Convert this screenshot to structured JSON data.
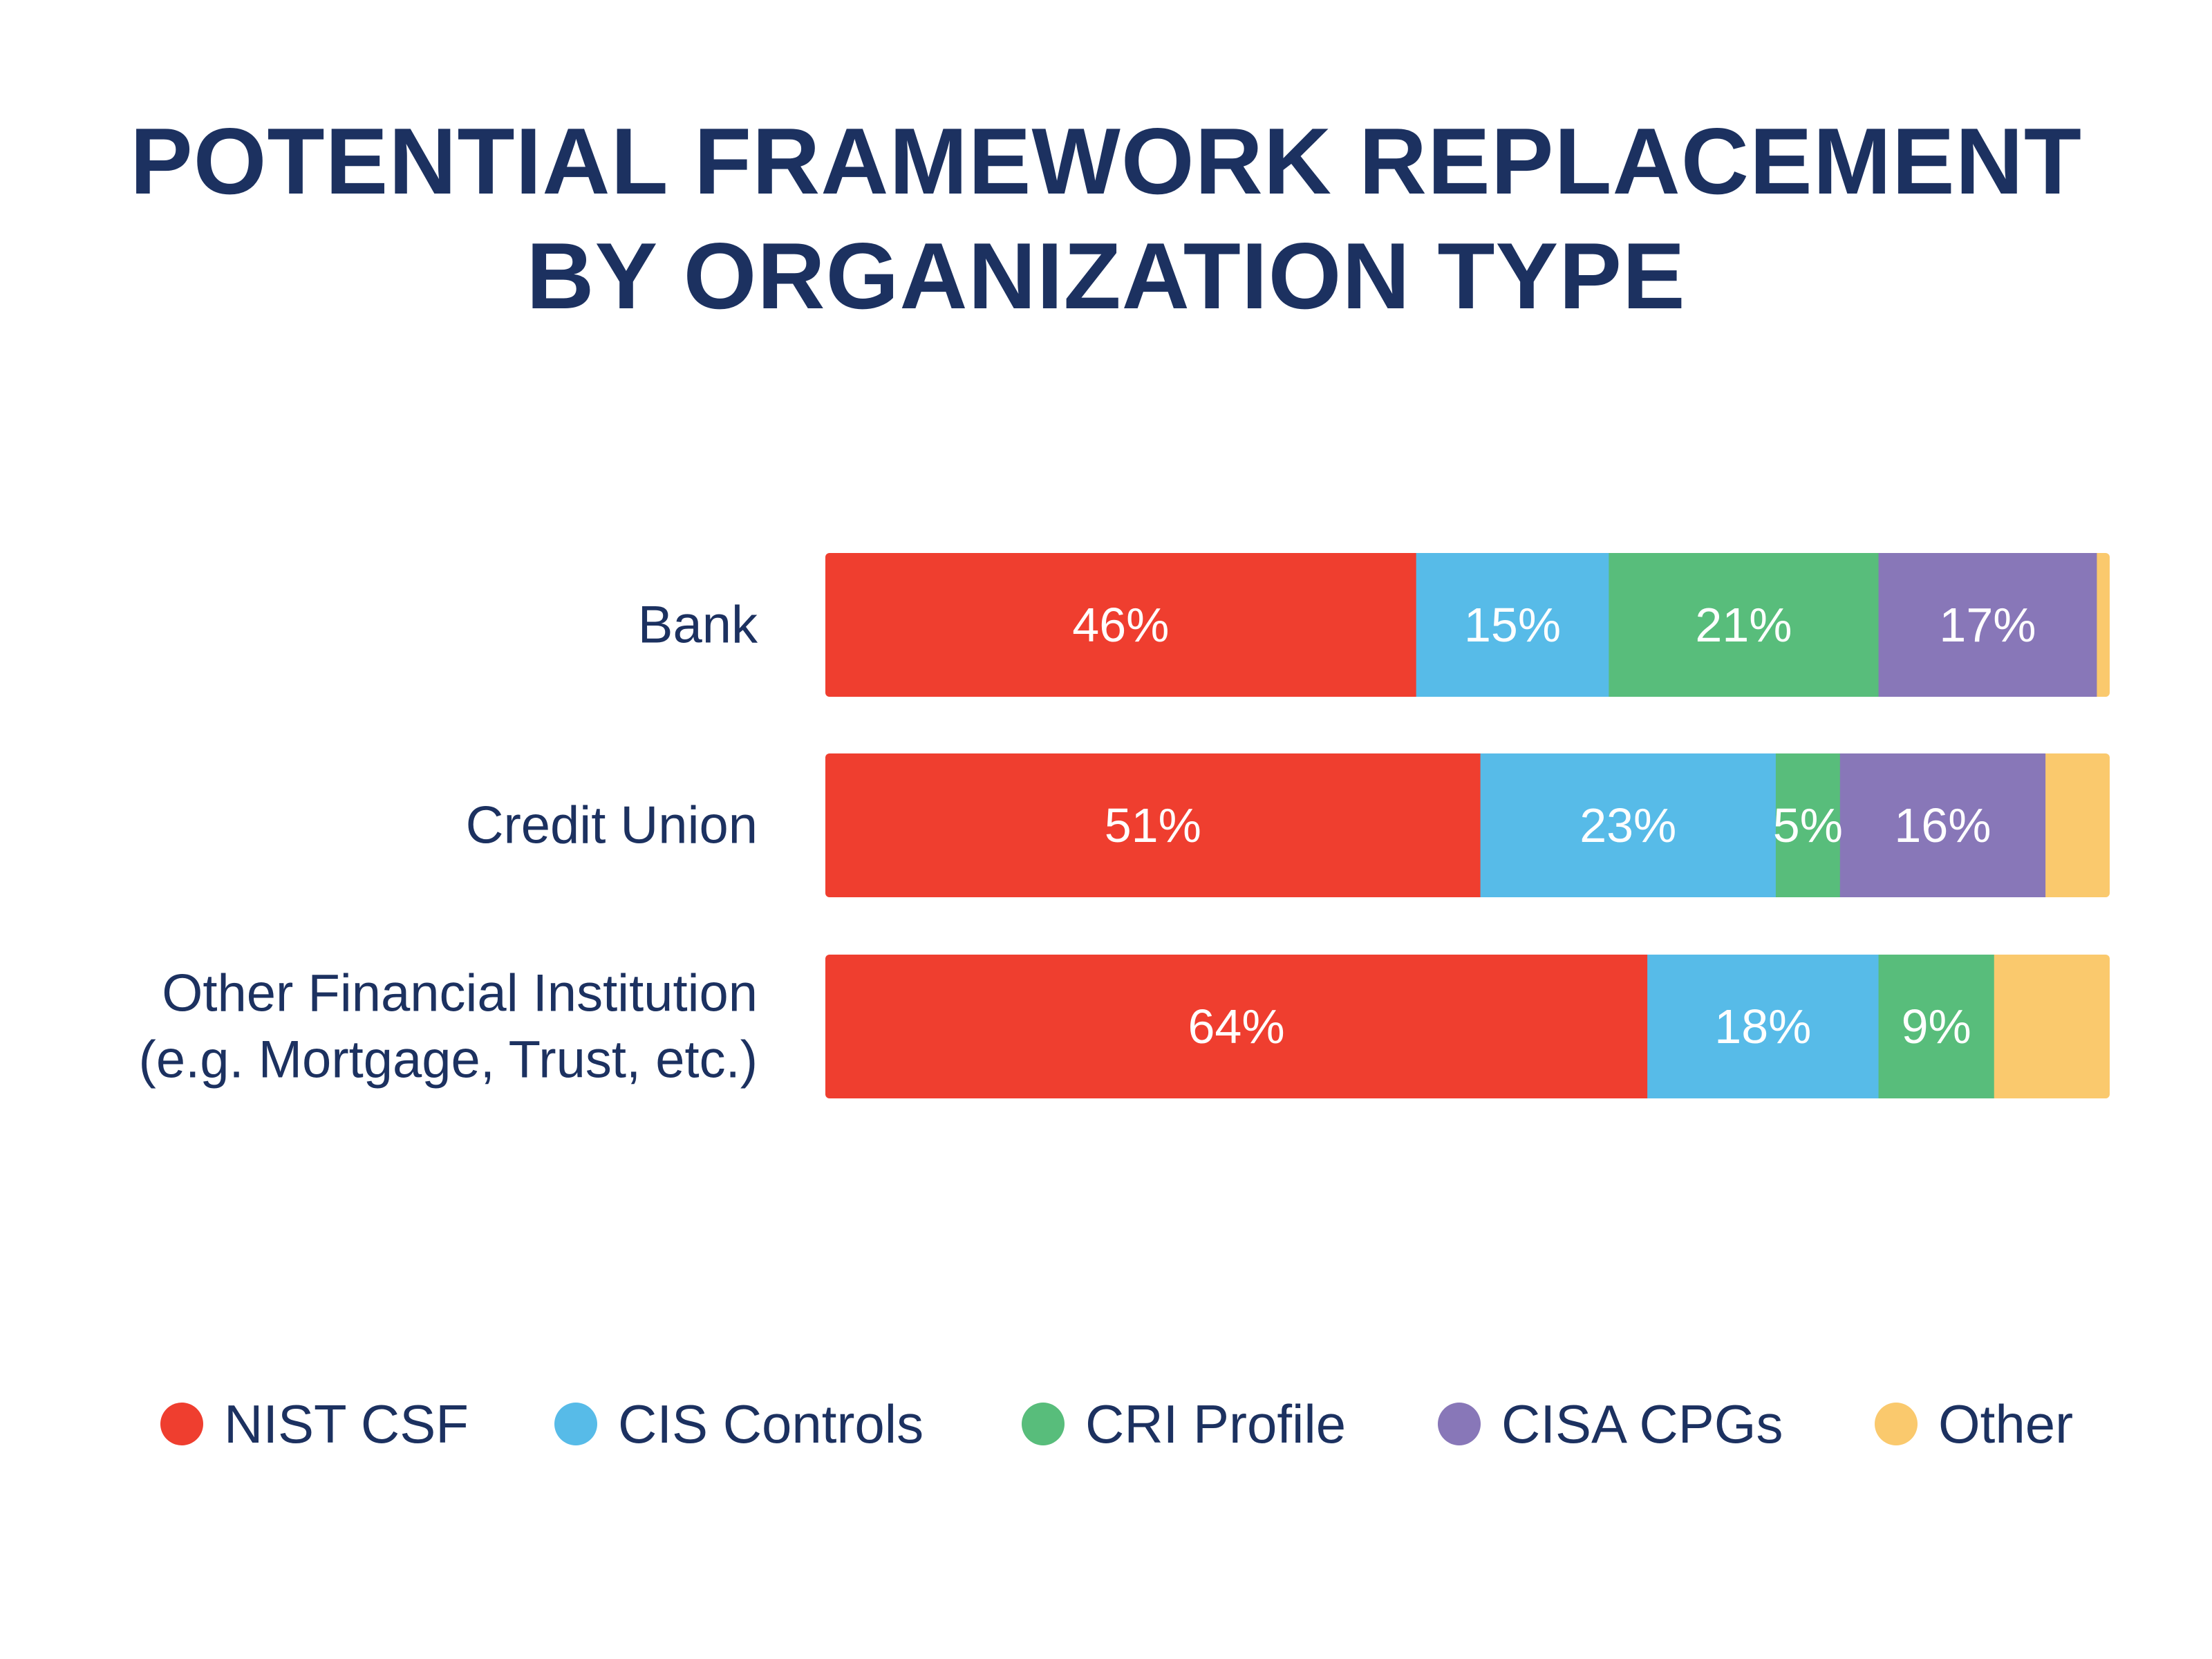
{
  "chart_data": {
    "type": "bar",
    "orientation": "horizontal",
    "stacked": true,
    "title_lines": [
      "POTENTIAL FRAMEWORK REPLACEMENT",
      "BY ORGANIZATION TYPE"
    ],
    "categories": [
      [
        "Bank"
      ],
      [
        "Credit Union"
      ],
      [
        "Other Financial Institution",
        "(e.g. Mortgage, Trust, etc.)"
      ]
    ],
    "series": [
      {
        "name": "NIST CSF",
        "color": "#ef3e2f",
        "values": [
          46,
          51,
          64
        ],
        "labels": [
          "46%",
          "51%",
          "64%"
        ]
      },
      {
        "name": "CIS Controls",
        "color": "#57bbe8",
        "values": [
          15,
          23,
          18
        ],
        "labels": [
          "15%",
          "23%",
          "18%"
        ]
      },
      {
        "name": "CRI Profile",
        "color": "#58bd7b",
        "values": [
          21,
          5,
          9
        ],
        "labels": [
          "21%",
          "5%",
          "9%"
        ]
      },
      {
        "name": "CISA CPGs",
        "color": "#8877b8",
        "values": [
          17,
          16,
          0
        ],
        "labels": [
          "17%",
          "16%",
          ""
        ]
      },
      {
        "name": "Other",
        "color": "#fac96d",
        "values": [
          1,
          5,
          9
        ],
        "labels": [
          "",
          "",
          ""
        ]
      }
    ],
    "xlim": [
      0,
      100
    ],
    "grid": false,
    "legend_position": "bottom"
  }
}
